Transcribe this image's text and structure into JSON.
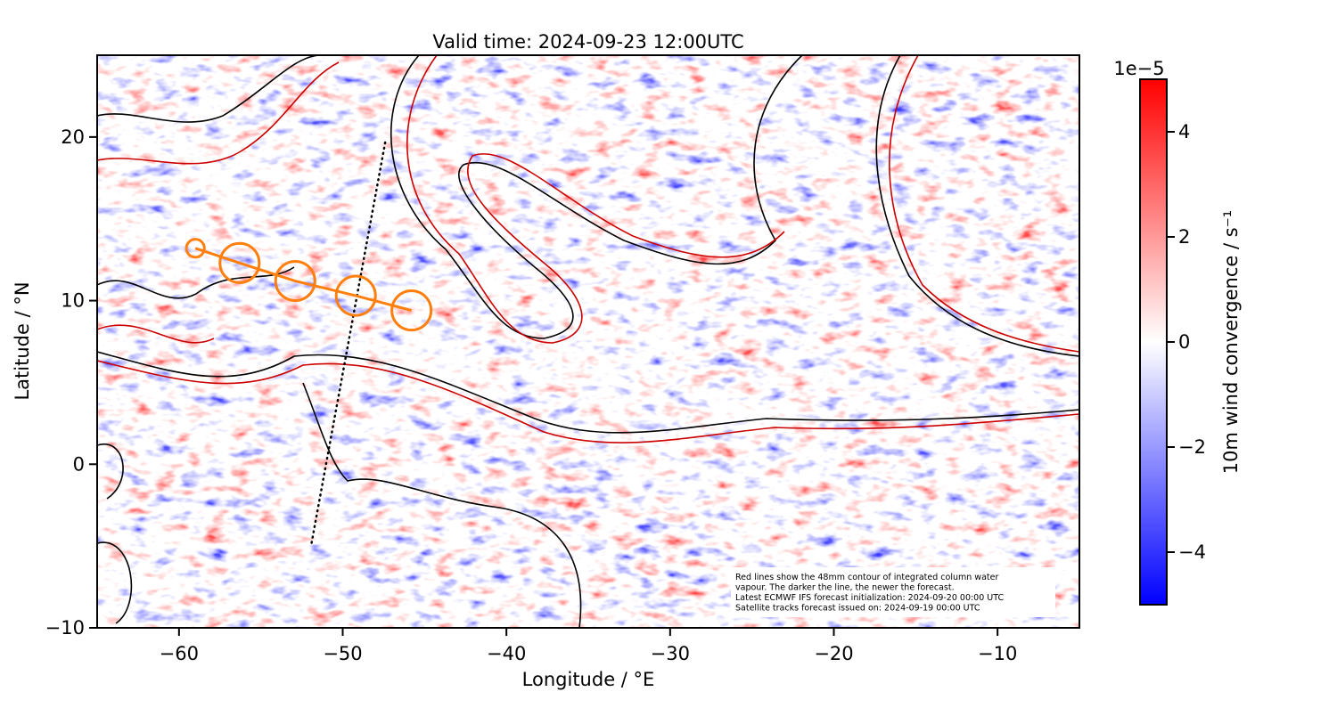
{
  "chart_data": {
    "type": "map",
    "title": "Valid time: 2024-09-23 12:00UTC",
    "xlabel": "Longitude / °E",
    "ylabel": "Latitude / °N",
    "xlim": [
      -65,
      -5
    ],
    "ylim": [
      -10,
      25
    ],
    "xticks": [
      {
        "value": -60,
        "label": "−60"
      },
      {
        "value": -50,
        "label": "−50"
      },
      {
        "value": -40,
        "label": "−40"
      },
      {
        "value": -30,
        "label": "−30"
      },
      {
        "value": -20,
        "label": "−20"
      },
      {
        "value": -10,
        "label": "−10"
      }
    ],
    "yticks": [
      {
        "value": -10,
        "label": "−10"
      },
      0,
      10,
      20
    ],
    "colorbar": {
      "label": "10m wind convergence / s⁻¹",
      "offset": "1e−5",
      "lim": [
        -5,
        5
      ],
      "ticks": [
        {
          "value": -4,
          "label": "−4"
        },
        {
          "value": -2,
          "label": "−2"
        },
        0,
        2,
        4
      ],
      "colors": [
        "#0000ff",
        "#ffffff",
        "#ff0000"
      ]
    },
    "tracks": {
      "color": "#ff7f0e",
      "x": [
        -59,
        -56.3,
        -52.9,
        -49.2,
        -45.8
      ],
      "y": [
        13.2,
        12.3,
        11.2,
        10.3,
        9.4
      ],
      "radius": [
        0.55,
        1.2,
        1.2,
        1.2,
        1.2
      ]
    },
    "satellite_track": {
      "color": "#000000",
      "x": [
        -51.9,
        -47.4
      ],
      "y": [
        -4.8,
        19.7
      ]
    },
    "annotation": [
      "Red lines show the 48mm contour of integrated column water",
      "vapour. The darker the line, the newer the forecast.",
      "Latest ECMWF IFS forecast initialization: 2024-09-20 00:00 UTC",
      "Satellite tracks forecast issued on: 2024-09-19 00:00 UTC"
    ]
  }
}
